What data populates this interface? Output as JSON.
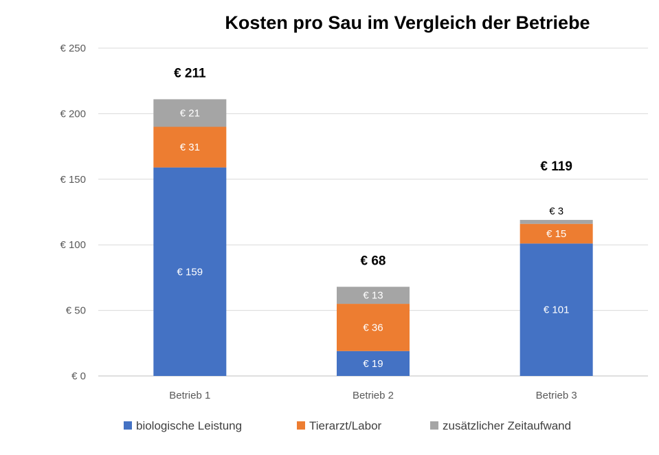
{
  "chart_data": {
    "type": "bar",
    "stacked": true,
    "title": "Kosten pro Sau im Vergleich der Betriebe",
    "xlabel": "",
    "ylabel": "",
    "ylim": [
      0,
      250
    ],
    "yticks": [
      0,
      50,
      100,
      150,
      200,
      250
    ],
    "ytick_labels": [
      "€ 0",
      "€ 50",
      "€ 100",
      "€ 150",
      "€ 200",
      "€ 250"
    ],
    "grid": true,
    "legend_position": "bottom",
    "categories": [
      "Betrieb 1",
      "Betrieb 2",
      "Betrieb 3"
    ],
    "series": [
      {
        "name": "biologische Leistung",
        "color": "#4472c4",
        "values": [
          159,
          19,
          101
        ],
        "labels": [
          "€ 159",
          "€ 19",
          "€ 101"
        ],
        "label_color": "#ffffff"
      },
      {
        "name": "Tierarzt/Labor",
        "color": "#ed7d31",
        "values": [
          31,
          36,
          15
        ],
        "labels": [
          "€ 31",
          "€ 36",
          "€ 15"
        ],
        "label_color": "#ffffff"
      },
      {
        "name": "zusätzlicher Zeitaufwand",
        "color": "#a5a5a5",
        "values": [
          21,
          13,
          3
        ],
        "labels": [
          "€ 21",
          "€ 13",
          "€ 3"
        ],
        "label_color": "#ffffff"
      }
    ],
    "totals": [
      211,
      68,
      119
    ],
    "total_labels": [
      "€ 211",
      "€ 68",
      "€ 119"
    ]
  }
}
